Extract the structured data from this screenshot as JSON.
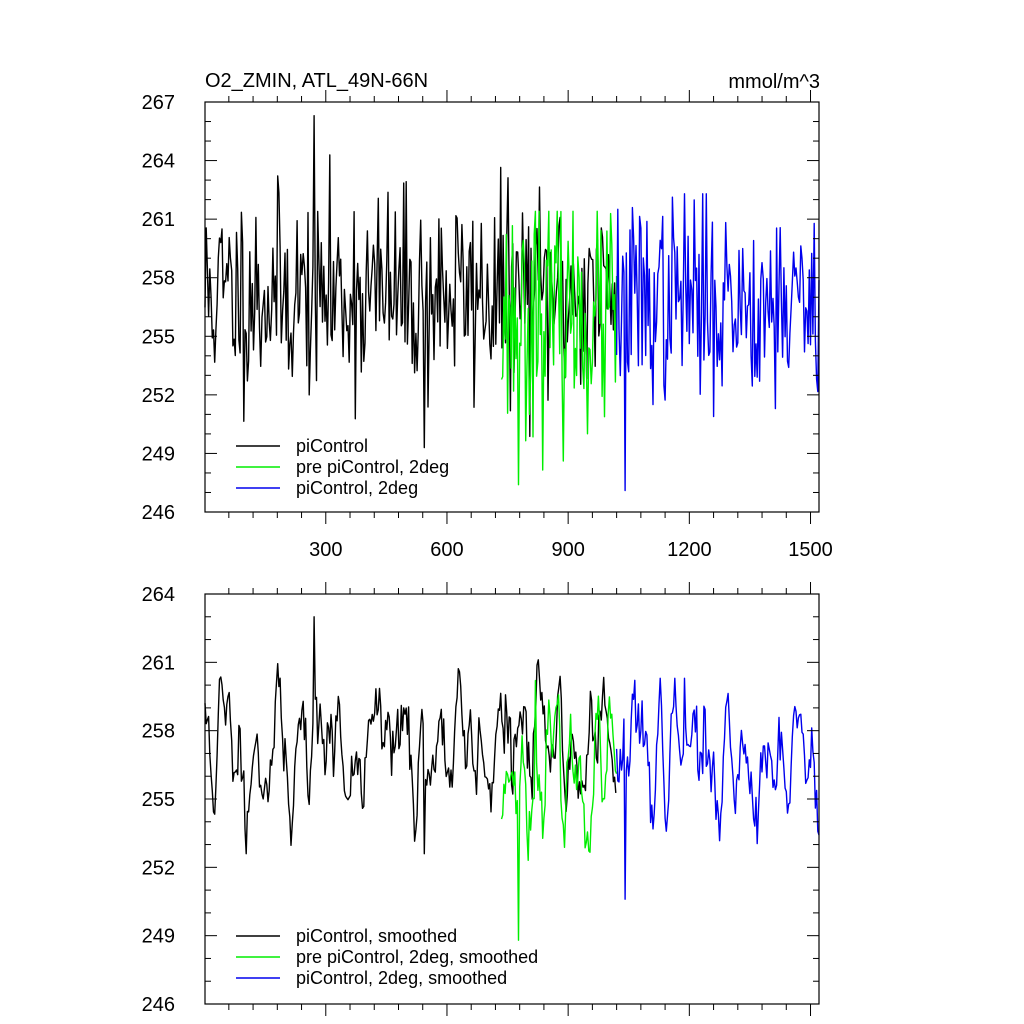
{
  "chart_data": [
    {
      "type": "line",
      "title": "O2_ZMIN, ATL_49N-66N",
      "units": "mmol/m^3",
      "xlim": [
        1,
        1521
      ],
      "ylim": [
        246,
        267
      ],
      "x_ticks": [
        300,
        600,
        900,
        1200,
        1500
      ],
      "y_ticks": [
        246,
        249,
        252,
        255,
        258,
        261,
        264,
        267
      ],
      "x_tick_labels": [
        "300",
        "600",
        "900",
        "1200",
        "1500"
      ],
      "y_tick_labels": [
        "246",
        "249",
        "252",
        "255",
        "258",
        "261",
        "264",
        "267"
      ],
      "grid": false,
      "legend_position": "bottom-left",
      "series": [
        {
          "name": "piControl",
          "color": "#000000",
          "x_start": 1,
          "x_end": 1020,
          "mean": 257.2,
          "sd": 2.6,
          "min": 249.3,
          "max": 266.3,
          "seed": 11
        },
        {
          "name": "pre piControl, 2deg",
          "color": "#00ee00",
          "x_start": 735,
          "x_end": 1020,
          "mean": 256.0,
          "sd": 2.9,
          "min": 247.4,
          "max": 261.4,
          "seed": 23
        },
        {
          "name": "piControl, 2deg",
          "color": "#0000ee",
          "x_start": 1020,
          "x_end": 1521,
          "mean": 256.8,
          "sd": 2.5,
          "min": 247.1,
          "max": 262.3,
          "seed": 37
        }
      ]
    },
    {
      "type": "line",
      "xlim": [
        1,
        1521
      ],
      "ylim": [
        246,
        264
      ],
      "x_ticks": [
        300,
        600,
        900,
        1200,
        1500
      ],
      "y_ticks": [
        246,
        249,
        252,
        255,
        258,
        261,
        264
      ],
      "y_tick_labels": [
        "246",
        "249",
        "252",
        "255",
        "258",
        "261",
        "264"
      ],
      "grid": false,
      "legend_position": "bottom-left",
      "series": [
        {
          "name": "piControl, smoothed",
          "color": "#000000",
          "x_start": 1,
          "x_end": 1020,
          "mean": 257.3,
          "sd": 1.6,
          "min": 252.6,
          "max": 263.0,
          "seed": 11
        },
        {
          "name": "pre piControl, 2deg, smoothed",
          "color": "#00ee00",
          "x_start": 735,
          "x_end": 1020,
          "mean": 256.0,
          "sd": 1.8,
          "min": 248.8,
          "max": 260.2,
          "seed": 23
        },
        {
          "name": "piControl, 2deg, smoothed",
          "color": "#0000ee",
          "x_start": 1020,
          "x_end": 1521,
          "mean": 256.8,
          "sd": 1.6,
          "min": 250.6,
          "max": 260.3,
          "seed": 37
        }
      ]
    }
  ]
}
